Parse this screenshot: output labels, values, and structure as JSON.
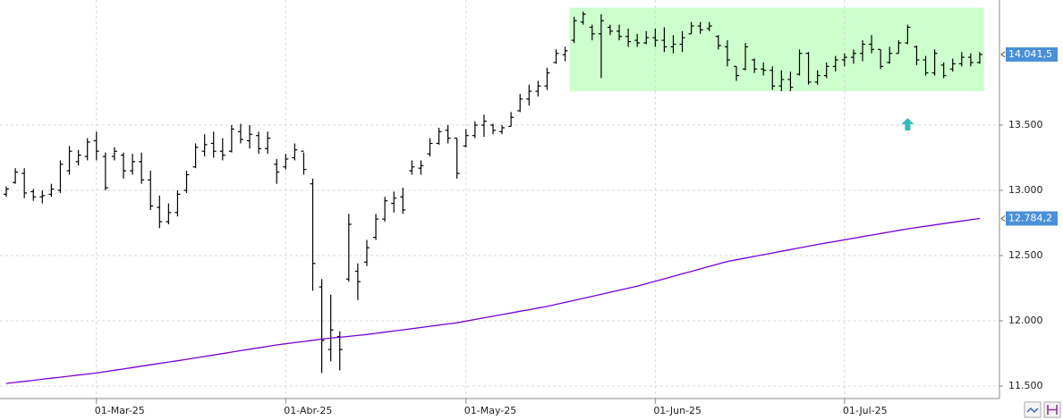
{
  "chart_data": {
    "type": "ohlc",
    "categories": [
      null,
      null,
      null,
      null,
      null,
      null,
      null,
      null,
      null,
      null,
      "01-Mar-25",
      null,
      null,
      null,
      null,
      null,
      null,
      null,
      null,
      null,
      null,
      null,
      null,
      null,
      null,
      null,
      null,
      null,
      null,
      null,
      null,
      "01-Abr-25",
      null,
      null,
      null,
      null,
      null,
      null,
      null,
      null,
      null,
      null,
      null,
      null,
      null,
      null,
      null,
      null,
      null,
      null,
      null,
      "01-May-25",
      null,
      null,
      null,
      null,
      null,
      null,
      null,
      null,
      null,
      null,
      null,
      null,
      null,
      null,
      null,
      null,
      null,
      null,
      null,
      null,
      "01-Jun-25",
      null,
      null,
      null,
      null,
      null,
      null,
      null,
      null,
      null,
      null,
      null,
      null,
      null,
      null,
      null,
      null,
      null,
      null,
      null,
      null,
      "01-Jul-25",
      null,
      null,
      null,
      null,
      null,
      null,
      null,
      null,
      null,
      null,
      null,
      null,
      null,
      null,
      null
    ],
    "series": [
      {
        "type": "ohlc",
        "color": "#000000",
        "open": [
          12970,
          13060,
          13130,
          12990,
          12950,
          12970,
          13000,
          13150,
          13220,
          13260,
          13380,
          13260,
          13260,
          13270,
          13150,
          13220,
          13080,
          12870,
          12760,
          12830,
          13000,
          13180,
          13300,
          13360,
          13300,
          13300,
          13450,
          13380,
          13420,
          13320,
          13200,
          13180,
          13250,
          13300,
          13050,
          12260,
          11780,
          11880,
          12320,
          12380,
          12450,
          12640,
          12780,
          12900,
          12950,
          13150,
          13170,
          13280,
          13360,
          13460,
          13400,
          13340,
          13420,
          13500,
          13500,
          13450,
          13490,
          13610,
          13700,
          13760,
          13800,
          13980,
          14040,
          14150,
          14290,
          14250,
          14200,
          14250,
          14220,
          14180,
          14150,
          14130,
          14170,
          14150,
          14100,
          14120,
          14200,
          14260,
          14240,
          14180,
          14100,
          13950,
          13930,
          14000,
          13930,
          13920,
          13800,
          13850,
          13890,
          14050,
          13830,
          13880,
          13950,
          14000,
          14020,
          14050,
          14120,
          14080,
          13980,
          14050,
          14130,
          14100,
          14000,
          13900,
          13960,
          13930,
          13970,
          14020,
          13980
        ],
        "high": [
          13030,
          13170,
          13170,
          13010,
          13000,
          13050,
          13230,
          13340,
          13310,
          13400,
          13450,
          13290,
          13330,
          13290,
          13280,
          13290,
          13150,
          12960,
          12900,
          13000,
          13150,
          13360,
          13430,
          13450,
          13400,
          13500,
          13510,
          13500,
          13450,
          13450,
          13240,
          13280,
          13360,
          13290,
          13090,
          12320,
          12200,
          11920,
          12820,
          12440,
          12620,
          12820,
          12950,
          12990,
          13020,
          13230,
          13230,
          13400,
          13480,
          13500,
          13400,
          13470,
          13530,
          13580,
          13510,
          13500,
          13600,
          13740,
          13810,
          13840,
          13940,
          14080,
          14100,
          14330,
          14370,
          14270,
          14350,
          14270,
          14270,
          14240,
          14200,
          14220,
          14240,
          14250,
          14190,
          14220,
          14290,
          14290,
          14290,
          14190,
          14150,
          13950,
          14130,
          14010,
          13980,
          13950,
          13920,
          13910,
          14080,
          14060,
          13920,
          13980,
          14030,
          14050,
          14080,
          14150,
          14190,
          14080,
          14100,
          14150,
          14270,
          14110,
          14030,
          14080,
          13980,
          14010,
          14060,
          14050,
          14060
        ],
        "low": [
          12950,
          13050,
          12940,
          12920,
          12900,
          12950,
          12980,
          13120,
          13190,
          13230,
          13230,
          13000,
          13230,
          13090,
          13120,
          13050,
          12850,
          12710,
          12740,
          12800,
          12980,
          13170,
          13260,
          13250,
          13230,
          13290,
          13360,
          13320,
          13280,
          13280,
          13050,
          13160,
          13230,
          13120,
          12230,
          11600,
          11690,
          11620,
          12300,
          12160,
          12420,
          12620,
          12760,
          12830,
          12820,
          13120,
          13120,
          13260,
          13350,
          13360,
          13090,
          13330,
          13400,
          13410,
          13430,
          13430,
          13490,
          13600,
          13650,
          13720,
          13770,
          13970,
          13990,
          14130,
          14270,
          14150,
          13860,
          14190,
          14150,
          14100,
          14100,
          14120,
          14100,
          14060,
          14050,
          14060,
          14200,
          14200,
          14220,
          14080,
          13950,
          13840,
          13920,
          13900,
          13880,
          13770,
          13760,
          13760,
          13880,
          13810,
          13810,
          13860,
          13910,
          13950,
          13970,
          13990,
          14050,
          13930,
          13970,
          14050,
          14120,
          13960,
          13880,
          13880,
          13860,
          13910,
          13950,
          13950,
          13970
        ],
        "close": [
          13010,
          13140,
          12980,
          12950,
          12960,
          13010,
          13200,
          13300,
          13270,
          13370,
          13300,
          13020,
          13300,
          13150,
          13220,
          13080,
          12880,
          12760,
          12830,
          12970,
          13120,
          13330,
          13350,
          13300,
          13270,
          13470,
          13390,
          13430,
          13320,
          13400,
          13140,
          13240,
          13310,
          13160,
          12440,
          11850,
          11930,
          11780,
          12740,
          12300,
          12560,
          12780,
          12920,
          12940,
          12850,
          13180,
          13190,
          13360,
          13450,
          13400,
          13130,
          13420,
          13500,
          13530,
          13460,
          13480,
          13560,
          13700,
          13760,
          13800,
          13900,
          14050,
          14070,
          14300,
          14350,
          14200,
          14300,
          14220,
          14180,
          14140,
          14130,
          14170,
          14150,
          14100,
          14120,
          14170,
          14260,
          14230,
          14260,
          14110,
          14000,
          13880,
          14100,
          13930,
          13920,
          13800,
          13850,
          13790,
          14050,
          13830,
          13880,
          13950,
          14000,
          14020,
          14050,
          14120,
          14080,
          13950,
          14050,
          14130,
          14250,
          14000,
          13900,
          14050,
          13880,
          13970,
          14020,
          13980,
          14041.5
        ],
        "last_label": {
          "value": 14041.5,
          "label": "14.041,5"
        }
      },
      {
        "type": "line",
        "color": "#7a00d4",
        "values": [
          11520,
          11528,
          11536,
          11544,
          11552,
          11560,
          11568,
          11576,
          11584,
          11592,
          11600,
          11610,
          11621,
          11631,
          11642,
          11652,
          11663,
          11673,
          11684,
          11694,
          11705,
          11716,
          11727,
          11738,
          11749,
          11760,
          11771,
          11782,
          11793,
          11804,
          11815,
          11824,
          11833,
          11842,
          11851,
          11860,
          11867,
          11874,
          11881,
          11888,
          11895,
          11904,
          11913,
          11922,
          11931,
          11940,
          11949,
          11958,
          11967,
          11976,
          11985,
          11998,
          12010,
          12023,
          12035,
          12048,
          12060,
          12073,
          12085,
          12098,
          12110,
          12126,
          12141,
          12157,
          12172,
          12188,
          12203,
          12219,
          12234,
          12250,
          12265,
          12284,
          12303,
          12322,
          12341,
          12360,
          12379,
          12398,
          12417,
          12436,
          12455,
          12468,
          12481,
          12494,
          12507,
          12520,
          12533,
          12546,
          12559,
          12572,
          12585,
          12597,
          12609,
          12621,
          12633,
          12645,
          12657,
          12669,
          12681,
          12693,
          12705,
          12715,
          12725,
          12735,
          12745,
          12755,
          12765,
          12775,
          12784.2
        ],
        "last_label": {
          "value": 12784.2,
          "label": "12.784,2"
        }
      }
    ],
    "highlight": {
      "from": 63,
      "to": 108,
      "ylim": [
        13760,
        14400
      ],
      "color": "#ccffcc"
    },
    "signals": [
      {
        "index": 100,
        "value": 13500,
        "color": "#33bbbb"
      }
    ],
    "ylim": [
      11411,
      14459
    ],
    "yticks": [
      {
        "value": 11500,
        "label": "11.500"
      },
      {
        "value": 12000,
        "label": "12.000"
      },
      {
        "value": 12500,
        "label": "12.500"
      },
      {
        "value": 13000,
        "label": "13.000"
      },
      {
        "value": 13500,
        "label": "13.500"
      }
    ],
    "grid": true,
    "label_color": "#4a90d9"
  }
}
